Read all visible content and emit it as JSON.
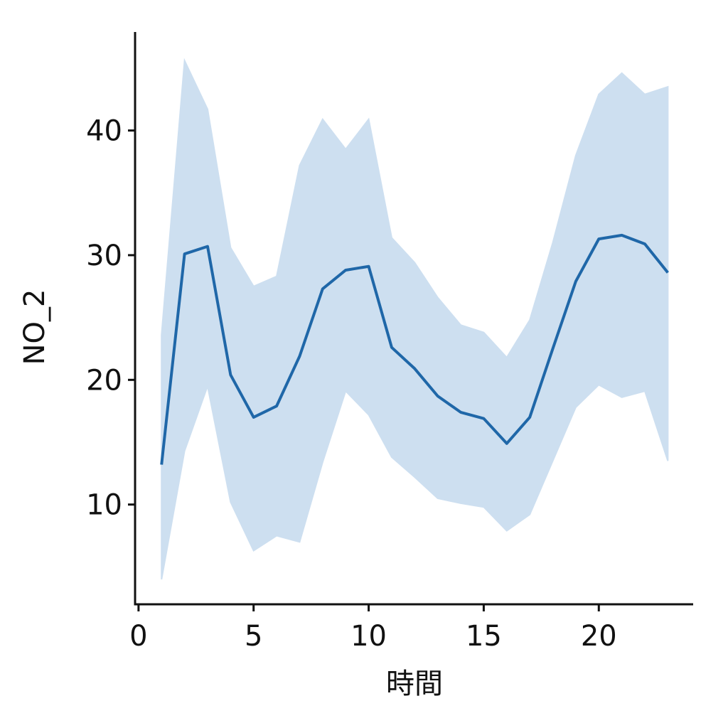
{
  "chart_data": {
    "type": "line",
    "xlabel": "時間",
    "ylabel": "NO_2",
    "x": [
      1,
      2,
      3,
      4,
      5,
      6,
      7,
      8,
      9,
      10,
      11,
      12,
      13,
      14,
      15,
      16,
      17,
      18,
      19,
      20,
      21,
      22,
      23
    ],
    "series": [
      {
        "color": "#1f67a8",
        "band_color": "#cddff0",
        "values": [
          13.2,
          30.1,
          30.7,
          20.4,
          17.0,
          17.9,
          21.9,
          27.3,
          28.8,
          29.1,
          22.6,
          20.9,
          18.7,
          17.4,
          16.9,
          14.9,
          17.0,
          22.5,
          27.9,
          31.3,
          31.6,
          30.9,
          28.6
        ],
        "upper": [
          23.6,
          45.6,
          41.7,
          30.6,
          27.5,
          28.3,
          37.2,
          40.9,
          38.5,
          40.9,
          31.4,
          29.4,
          26.6,
          24.4,
          23.8,
          21.8,
          24.8,
          31.0,
          38.0,
          42.9,
          44.6,
          42.9,
          43.5
        ],
        "lower": [
          4.0,
          14.3,
          19.5,
          10.2,
          6.3,
          7.5,
          7.0,
          13.4,
          19.1,
          17.2,
          13.8,
          12.2,
          10.5,
          10.1,
          9.8,
          7.9,
          9.2,
          13.5,
          17.8,
          19.6,
          18.6,
          19.1,
          13.5
        ]
      }
    ],
    "xlim": [
      -0.15,
      24.1
    ],
    "ylim": [
      2,
      47.9
    ],
    "xticks": [
      0,
      5,
      10,
      15,
      20
    ],
    "yticks": [
      10,
      20,
      30,
      40
    ]
  }
}
